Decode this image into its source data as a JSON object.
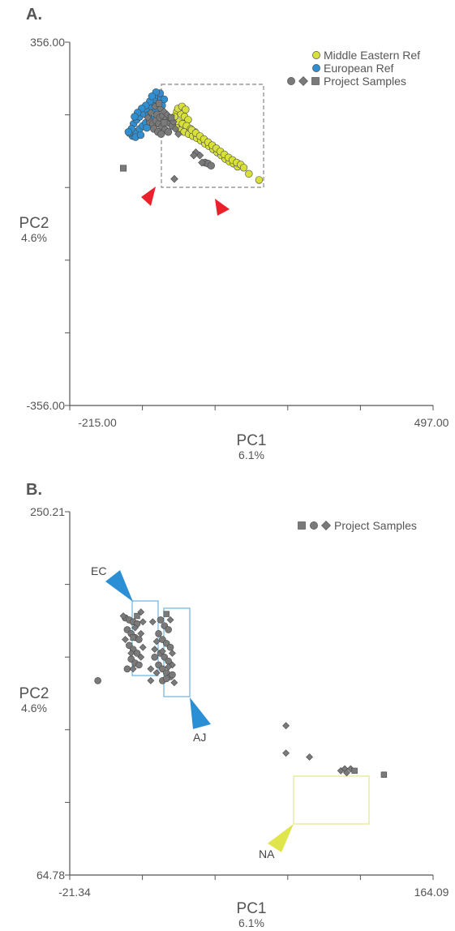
{
  "colors": {
    "middle_eastern": "#d8e03a",
    "european": "#2f8fd0",
    "project": "#7a7a7a",
    "arrow_red": "#e8212a",
    "arrow_blue": "#2a8fd4",
    "arrow_yellow": "#dfe54a",
    "box_blue": "#6ab4e0",
    "box_yellow": "#e4e78a",
    "axis": "#555555",
    "dashed_box": "#888888"
  },
  "chart_data": [
    {
      "panel": "A.",
      "type": "scatter",
      "xlabel": "PC1",
      "xlabel_sub": "6.1%",
      "ylabel": "PC2",
      "ylabel_sub": "4.6%",
      "xlim": [
        -215.0,
        497.0
      ],
      "ylim": [
        -356.0,
        356.0
      ],
      "x_tick_labels": [
        "-215.00",
        "497.00"
      ],
      "y_tick_labels": [
        "356.00",
        "-356.00"
      ],
      "legend_position": "top-right",
      "legend": [
        {
          "label": "Middle Eastern Ref",
          "markers": [
            "circle"
          ],
          "color": "#d8e03a"
        },
        {
          "label": "European Ref",
          "markers": [
            "circle"
          ],
          "color": "#2f8fd0"
        },
        {
          "label": "Project Samples",
          "markers": [
            "circle",
            "diamond",
            "square"
          ],
          "color": "#7a7a7a"
        }
      ],
      "series": [
        {
          "name": "Middle Eastern Ref",
          "marker": "circle",
          "color": "#d8e03a",
          "points": [
            [
              -5,
              220
            ],
            [
              3,
              215
            ],
            [
              10,
              210
            ],
            [
              17,
              204
            ],
            [
              -2,
              200
            ],
            [
              6,
              196
            ],
            [
              14,
              192
            ],
            [
              22,
              186
            ],
            [
              30,
              180
            ],
            [
              -6,
              188
            ],
            [
              1,
              183
            ],
            [
              9,
              180
            ],
            [
              18,
              176
            ],
            [
              26,
              172
            ],
            [
              34,
              168
            ],
            [
              42,
              163
            ],
            [
              50,
              157
            ],
            [
              58,
              152
            ],
            [
              66,
              146
            ],
            [
              74,
              140
            ],
            [
              82,
              134
            ],
            [
              90,
              127
            ],
            [
              98,
              122
            ],
            [
              106,
              118
            ],
            [
              114,
              112
            ],
            [
              24,
              184
            ],
            [
              32,
              178
            ],
            [
              40,
              172
            ],
            [
              48,
              166
            ],
            [
              56,
              160
            ],
            [
              64,
              154
            ],
            [
              72,
              148
            ],
            [
              80,
              142
            ],
            [
              88,
              136
            ],
            [
              96,
              130
            ],
            [
              104,
              125
            ],
            [
              112,
              120
            ],
            [
              -10,
              210
            ],
            [
              -3,
              226
            ],
            [
              5,
              230
            ],
            [
              12,
              224
            ],
            [
              120,
              116
            ],
            [
              126,
              110
            ],
            [
              136,
              98
            ],
            [
              156,
              86
            ]
          ]
        },
        {
          "name": "European Ref",
          "marker": "circle",
          "color": "#2f8fd0",
          "points": [
            [
              -92,
              172
            ],
            [
              -85,
              180
            ],
            [
              -78,
              186
            ],
            [
              -72,
              192
            ],
            [
              -66,
              198
            ],
            [
              -98,
              178
            ],
            [
              -90,
              196
            ],
            [
              -84,
              204
            ],
            [
              -78,
              210
            ],
            [
              -70,
              216
            ],
            [
              -62,
              222
            ],
            [
              -55,
              230
            ],
            [
              -48,
              236
            ],
            [
              -40,
              240
            ],
            [
              -50,
              244
            ],
            [
              -42,
              252
            ],
            [
              -36,
              246
            ],
            [
              -58,
              240
            ],
            [
              -66,
              232
            ],
            [
              -74,
              226
            ],
            [
              -82,
              218
            ],
            [
              -88,
              210
            ],
            [
              -94,
              186
            ],
            [
              -100,
              180
            ],
            [
              -86,
              170
            ],
            [
              -76,
              174
            ],
            [
              -64,
              188
            ],
            [
              -56,
              206
            ],
            [
              -46,
              222
            ],
            [
              -34,
              232
            ],
            [
              -30,
              244
            ],
            [
              -38,
              256
            ],
            [
              -46,
              258
            ],
            [
              -54,
              250
            ],
            [
              -60,
              214
            ]
          ]
        },
        {
          "name": "Project Samples",
          "marker": "circle",
          "color": "#7a7a7a",
          "points": [
            [
              -58,
              200
            ],
            [
              -52,
              196
            ],
            [
              -46,
              202
            ],
            [
              -40,
              196
            ],
            [
              -34,
              190
            ],
            [
              -28,
              184
            ],
            [
              -22,
              180
            ],
            [
              -44,
              214
            ],
            [
              -38,
              208
            ],
            [
              -32,
              212
            ],
            [
              -26,
              204
            ],
            [
              -20,
              198
            ],
            [
              -14,
              192
            ],
            [
              -50,
              186
            ],
            [
              -42,
              180
            ],
            [
              -36,
              176
            ],
            [
              50,
              120
            ],
            [
              56,
              118
            ],
            [
              62,
              114
            ]
          ]
        },
        {
          "name": "Project Samples",
          "marker": "diamond",
          "color": "#7a7a7a",
          "points": [
            [
              -48,
              230
            ],
            [
              -38,
              226
            ],
            [
              -30,
              220
            ],
            [
              -24,
              214
            ],
            [
              -18,
              206
            ],
            [
              -12,
              200
            ],
            [
              -56,
              218
            ],
            [
              -62,
              208
            ],
            [
              -8,
              186
            ],
            [
              -2,
              176
            ],
            [
              32,
              140
            ],
            [
              40,
              134
            ],
            [
              28,
              134
            ],
            [
              44,
              120
            ],
            [
              -10,
              88
            ]
          ]
        },
        {
          "name": "Project Samples",
          "marker": "square",
          "color": "#7a7a7a",
          "points": [
            [
              -40,
              236
            ],
            [
              -30,
              198
            ],
            [
              -16,
              208
            ],
            [
              -110,
              109
            ]
          ]
        }
      ]
    },
    {
      "panel": "B.",
      "type": "scatter",
      "xlabel": "PC1",
      "xlabel_sub": "6.1%",
      "ylabel": "PC2",
      "ylabel_sub": "4.6%",
      "xlim": [
        -21.34,
        164.09
      ],
      "ylim": [
        64.78,
        250.21
      ],
      "x_tick_labels": [
        "-21.34",
        "164.09"
      ],
      "y_tick_labels": [
        "250.21",
        "64.78"
      ],
      "legend_position": "top-right",
      "legend": [
        {
          "label": "Project Samples",
          "markers": [
            "square",
            "circle",
            "diamond"
          ],
          "color": "#7a7a7a"
        }
      ],
      "annotations": [
        {
          "label": "EC",
          "color": "#2a8fd4"
        },
        {
          "label": "AJ",
          "color": "#2a8fd4"
        },
        {
          "label": "NA",
          "color": "#dfe54a"
        }
      ],
      "series": [
        {
          "name": "Project Samples",
          "marker": "circle",
          "color": "#7a7a7a",
          "points": [
            [
              7,
              196
            ],
            [
              9,
              195
            ],
            [
              11,
              194
            ],
            [
              13,
              193
            ],
            [
              8,
              190
            ],
            [
              10,
              188
            ],
            [
              12,
              186
            ],
            [
              14,
              185
            ],
            [
              9,
              182
            ],
            [
              11,
              180
            ],
            [
              13,
              178
            ],
            [
              10,
              175
            ],
            [
              12,
              173
            ],
            [
              14,
              172
            ],
            [
              8,
              170
            ],
            [
              -7,
              164
            ],
            [
              25,
              195
            ],
            [
              27,
              192
            ],
            [
              29,
              190
            ],
            [
              24,
              188
            ],
            [
              26,
              185
            ],
            [
              28,
              183
            ],
            [
              30,
              181
            ],
            [
              25,
              178
            ],
            [
              27,
              176
            ],
            [
              29,
              174
            ],
            [
              24,
              172
            ],
            [
              26,
              170
            ],
            [
              28,
              168
            ],
            [
              30,
              166
            ],
            [
              26,
              164
            ],
            [
              28,
              165
            ],
            [
              31,
              167
            ],
            [
              22,
              176
            ]
          ]
        },
        {
          "name": "Project Samples",
          "marker": "diamond",
          "color": "#7a7a7a",
          "points": [
            [
              6,
              197
            ],
            [
              15,
              199
            ],
            [
              16,
              194
            ],
            [
              12,
              191
            ],
            [
              15,
              188
            ],
            [
              7,
              185
            ],
            [
              16,
              181
            ],
            [
              10,
              178
            ],
            [
              15,
              176
            ],
            [
              11,
              170
            ],
            [
              21,
              194
            ],
            [
              30,
              195
            ],
            [
              23,
              184
            ],
            [
              31,
              178
            ],
            [
              20,
              170
            ],
            [
              31,
              172
            ],
            [
              23,
              168
            ],
            [
              32,
              163
            ],
            [
              20,
              164
            ],
            [
              29,
              171
            ],
            [
              26,
              179
            ],
            [
              22,
              180
            ],
            [
              89,
              141
            ],
            [
              89,
              127
            ],
            [
              101,
              125
            ],
            [
              117,
              118
            ],
            [
              119,
              119
            ],
            [
              120,
              117
            ],
            [
              122,
              119
            ]
          ]
        },
        {
          "name": "Project Samples",
          "marker": "square",
          "color": "#7a7a7a",
          "points": [
            [
              13,
              197
            ],
            [
              11,
              186
            ],
            [
              28,
              198
            ],
            [
              139,
              116
            ],
            [
              124,
              118
            ]
          ]
        }
      ]
    }
  ]
}
